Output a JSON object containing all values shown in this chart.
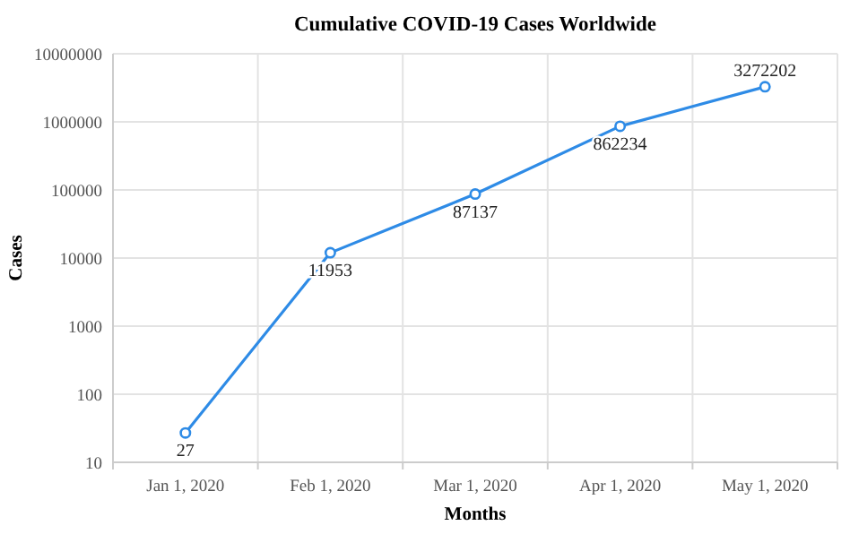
{
  "chart_data": {
    "type": "line",
    "title": "Cumulative COVID-19 Cases Worldwide",
    "xlabel": "Months",
    "ylabel": "Cases",
    "categories": [
      "Jan 1, 2020",
      "Feb 1, 2020",
      "Mar 1, 2020",
      "Apr 1, 2020",
      "May 1, 2020"
    ],
    "series": [
      {
        "color": "#2e8be6",
        "values": [
          27,
          11953,
          87137,
          862234,
          3272202
        ]
      }
    ],
    "log": true,
    "ylim": [
      10,
      10000000
    ],
    "yticks": [
      10,
      100,
      1000,
      10000,
      100000,
      1000000,
      10000000
    ],
    "grid": true,
    "marker": "circle",
    "line_style": "solid",
    "data_labels": true
  }
}
